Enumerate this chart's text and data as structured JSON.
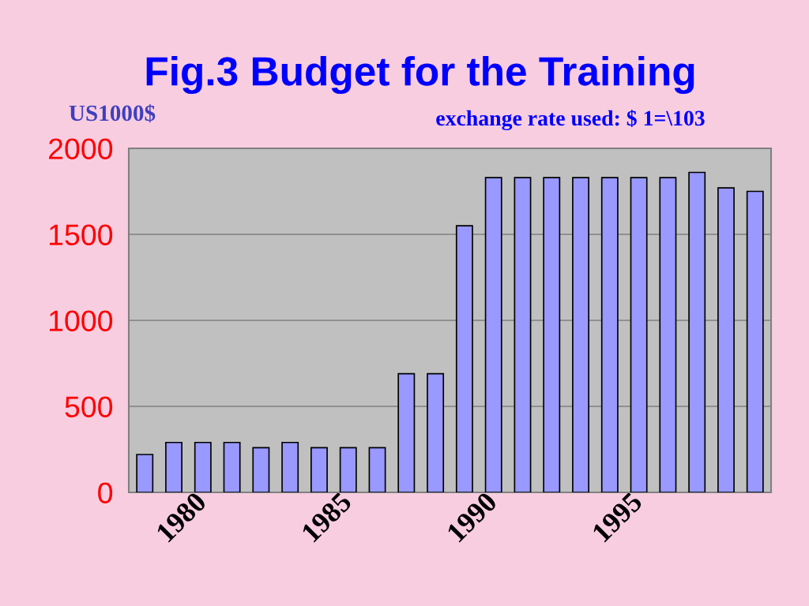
{
  "chart_data": {
    "type": "bar",
    "title": "Fig.3 Budget for the Training",
    "ylabel": "US1000$",
    "annotations": [
      "exchange rate used: $ 1=\\103"
    ],
    "categories": [
      null,
      null,
      "1980",
      null,
      null,
      null,
      null,
      "1985",
      null,
      null,
      null,
      null,
      "1990",
      null,
      null,
      null,
      null,
      "1995",
      null,
      null,
      null,
      null
    ],
    "values": [
      220,
      290,
      290,
      290,
      260,
      290,
      260,
      260,
      260,
      690,
      690,
      1550,
      1830,
      1830,
      1830,
      1830,
      1830,
      1830,
      1830,
      1860,
      1770,
      1750
    ],
    "color": "#9999ff",
    "ylim": [
      0,
      2000
    ],
    "yticks": [
      0,
      500,
      1000,
      1500,
      2000
    ],
    "grid": "y"
  }
}
